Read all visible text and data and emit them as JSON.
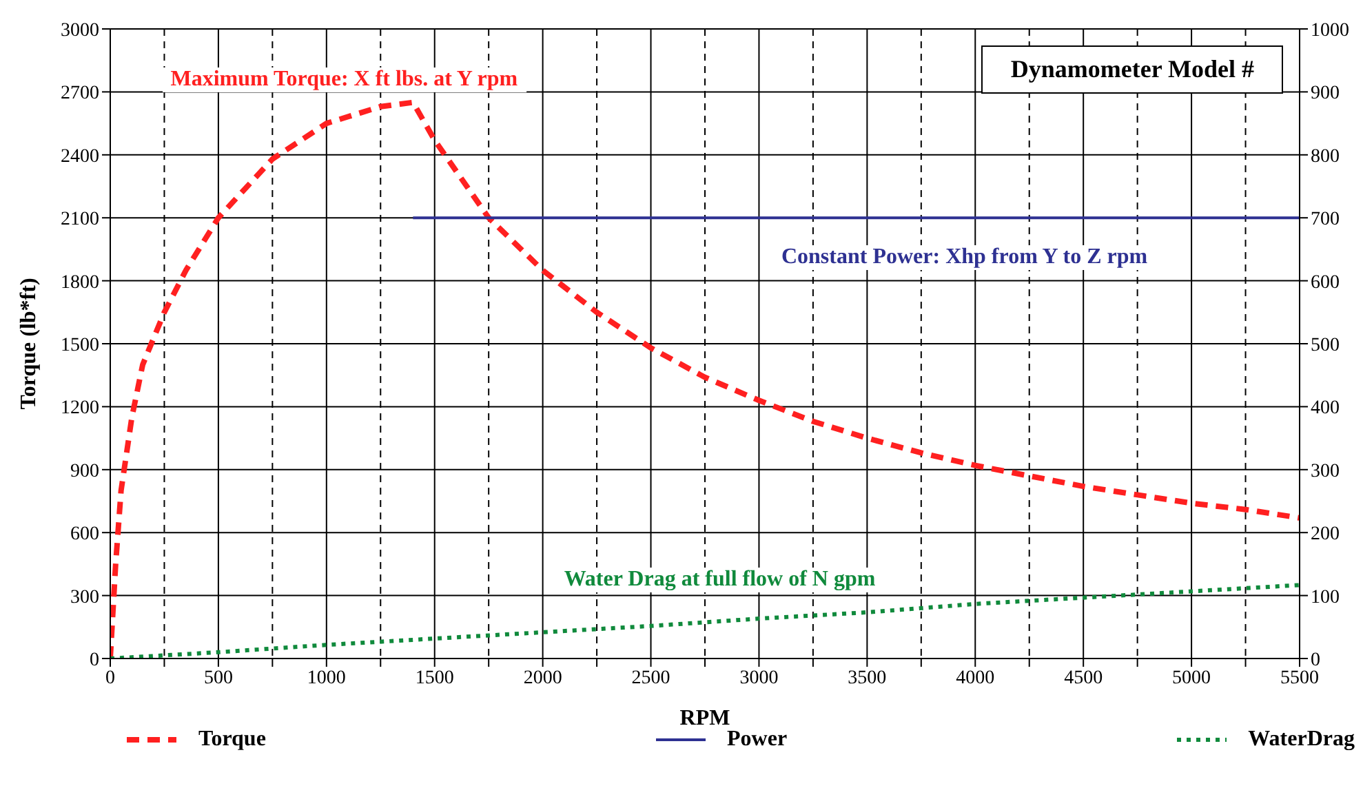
{
  "chart_data": {
    "type": "line",
    "title": "Dynamometer Model #",
    "xlabel": "RPM",
    "ylabel": "Torque (lb*ft)",
    "annotations": [
      "Maximum Torque: X ft lbs. at Y rpm",
      "Constant Power: Xhp from Y to Z rpm",
      "Water Drag at full flow of N gpm"
    ],
    "xlim": [
      0,
      5500
    ],
    "xticks": [
      0,
      {
        "value": 250,
        "label": null
      },
      500,
      {
        "value": 750,
        "label": null
      },
      1000,
      {
        "value": 1250,
        "label": null
      },
      1500,
      {
        "value": 1750,
        "label": null
      },
      2000,
      {
        "value": 2250,
        "label": null
      },
      2500,
      {
        "value": 2750,
        "label": null
      },
      3000,
      {
        "value": 3250,
        "label": null
      },
      3500,
      {
        "value": 3750,
        "label": null
      },
      4000,
      {
        "value": 4250,
        "label": null
      },
      4500,
      {
        "value": 4750,
        "label": null
      },
      5000,
      {
        "value": 5250,
        "label": null
      },
      5500
    ],
    "ylim": [
      0,
      3000
    ],
    "yticks": [
      0,
      300,
      600,
      900,
      1200,
      1500,
      1800,
      2100,
      2400,
      2700,
      3000
    ],
    "y2lim": [
      0,
      1000
    ],
    "y2ticks": [
      0,
      100,
      200,
      300,
      400,
      500,
      600,
      700,
      800,
      900,
      1000
    ],
    "grid": true,
    "legend": "bottom",
    "marker": "none",
    "series": [
      {
        "name": "Torque",
        "color": "#ff2020",
        "line_style": "dashed",
        "x": [
          0,
          25,
          50,
          100,
          150,
          250,
          350,
          500,
          750,
          1000,
          1250,
          1400,
          1500,
          1750,
          2000,
          2250,
          2500,
          2750,
          3000,
          3250,
          3500,
          3750,
          4000,
          4250,
          4500,
          4750,
          5000,
          5250,
          5500
        ],
        "values": [
          0,
          450,
          800,
          1150,
          1400,
          1650,
          1850,
          2100,
          2380,
          2550,
          2630,
          2650,
          2470,
          2100,
          1850,
          1650,
          1480,
          1340,
          1230,
          1130,
          1050,
          980,
          920,
          870,
          820,
          780,
          740,
          710,
          670
        ]
      },
      {
        "name": "Power",
        "color": "#2e3192",
        "line_style": "solid",
        "axis": "y2",
        "x": [
          1400,
          5500
        ],
        "values": [
          700,
          700
        ]
      },
      {
        "name": "WaterDrag",
        "color": "#108a3c",
        "line_style": "dotted",
        "x": [
          0,
          500,
          1000,
          1500,
          2000,
          2500,
          3000,
          3500,
          4000,
          4500,
          5000,
          5500
        ],
        "values": [
          0,
          30,
          65,
          95,
          125,
          155,
          190,
          220,
          260,
          290,
          320,
          350
        ]
      }
    ]
  }
}
